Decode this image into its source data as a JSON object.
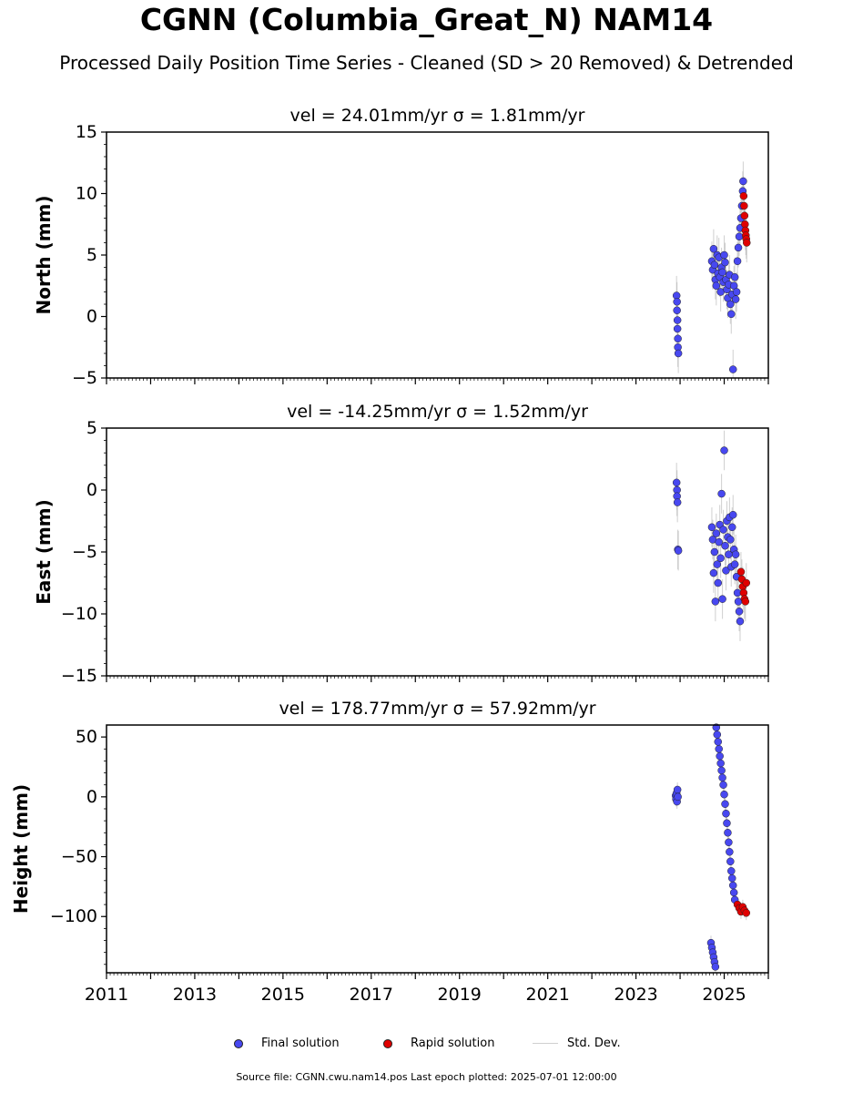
{
  "title": "CGNN (Columbia_Great_N) NAM14",
  "subtitle": "Processed Daily Position Time Series - Cleaned (SD > 20 Removed) & Detrended",
  "legend": {
    "final": "Final solution",
    "rapid": "Rapid solution",
    "stddev": "Std. Dev."
  },
  "footer": "Source file: CGNN.cwu.nam14.pos  Last epoch plotted: 2025-07-01 12:00:00",
  "colors": {
    "final": "#4848f0",
    "rapid": "#e00000",
    "stddev": "#b0b0b0"
  },
  "chart_data": [
    {
      "type": "scatter",
      "title": "vel = 24.01mm/yr   σ = 1.81mm/yr",
      "ylabel": "North (mm)",
      "xlim": [
        2011,
        2026
      ],
      "ylim": [
        -5,
        15
      ],
      "yticks": [
        "15",
        "10",
        "5",
        "0",
        "−5"
      ],
      "series": [
        {
          "name": "Final solution",
          "points": [
            [
              2023.92,
              1.7
            ],
            [
              2023.93,
              1.2
            ],
            [
              2023.93,
              0.5
            ],
            [
              2023.94,
              -0.3
            ],
            [
              2023.94,
              -1.0
            ],
            [
              2023.95,
              -1.8
            ],
            [
              2023.95,
              -2.5
            ],
            [
              2023.96,
              -3.0
            ],
            [
              2024.72,
              4.5
            ],
            [
              2024.74,
              3.8
            ],
            [
              2024.76,
              5.5
            ],
            [
              2024.78,
              4.2
            ],
            [
              2024.8,
              3.0
            ],
            [
              2024.82,
              2.5
            ],
            [
              2024.84,
              5.0
            ],
            [
              2024.86,
              3.5
            ],
            [
              2024.88,
              4.8
            ],
            [
              2024.9,
              3.2
            ],
            [
              2024.92,
              2.0
            ],
            [
              2024.94,
              4.0
            ],
            [
              2024.96,
              3.6
            ],
            [
              2024.98,
              2.8
            ],
            [
              2025.0,
              5.0
            ],
            [
              2025.02,
              4.4
            ],
            [
              2025.04,
              3.0
            ],
            [
              2025.06,
              2.2
            ],
            [
              2025.08,
              1.5
            ],
            [
              2025.1,
              2.6
            ],
            [
              2025.12,
              3.4
            ],
            [
              2025.14,
              1.0
            ],
            [
              2025.16,
              0.2
            ],
            [
              2025.18,
              1.8
            ],
            [
              2025.2,
              -4.3
            ],
            [
              2025.22,
              2.5
            ],
            [
              2025.24,
              3.2
            ],
            [
              2025.26,
              1.4
            ],
            [
              2025.28,
              2.0
            ],
            [
              2025.3,
              4.5
            ],
            [
              2025.32,
              5.6
            ],
            [
              2025.34,
              6.5
            ],
            [
              2025.36,
              7.2
            ],
            [
              2025.38,
              8.0
            ],
            [
              2025.4,
              9.0
            ],
            [
              2025.42,
              10.2
            ],
            [
              2025.43,
              11.0
            ]
          ]
        },
        {
          "name": "Rapid solution",
          "points": [
            [
              2025.44,
              9.8
            ],
            [
              2025.45,
              9.0
            ],
            [
              2025.46,
              8.2
            ],
            [
              2025.47,
              7.5
            ],
            [
              2025.48,
              7.0
            ],
            [
              2025.49,
              6.6
            ],
            [
              2025.5,
              6.3
            ],
            [
              2025.51,
              6.0
            ]
          ]
        }
      ]
    },
    {
      "type": "scatter",
      "title": "vel = -14.25mm/yr   σ = 1.52mm/yr",
      "ylabel": "East (mm)",
      "xlim": [
        2011,
        2026
      ],
      "ylim": [
        -15,
        5
      ],
      "yticks": [
        "5",
        "0",
        "−5",
        "−10",
        "−15"
      ],
      "series": [
        {
          "name": "Final solution",
          "points": [
            [
              2023.92,
              0.6
            ],
            [
              2023.93,
              0.0
            ],
            [
              2023.93,
              -0.5
            ],
            [
              2023.94,
              -1.0
            ],
            [
              2023.95,
              -4.8
            ],
            [
              2023.96,
              -4.9
            ],
            [
              2024.72,
              -3.0
            ],
            [
              2024.74,
              -4.0
            ],
            [
              2024.76,
              -6.7
            ],
            [
              2024.78,
              -5.0
            ],
            [
              2024.8,
              -9.0
            ],
            [
              2024.82,
              -3.5
            ],
            [
              2024.84,
              -6.0
            ],
            [
              2024.86,
              -7.5
            ],
            [
              2024.88,
              -4.2
            ],
            [
              2024.9,
              -2.8
            ],
            [
              2024.92,
              -5.5
            ],
            [
              2024.94,
              -0.3
            ],
            [
              2024.96,
              -8.8
            ],
            [
              2024.98,
              -3.2
            ],
            [
              2025.0,
              3.2
            ],
            [
              2025.02,
              -4.5
            ],
            [
              2025.04,
              -6.5
            ],
            [
              2025.06,
              -2.5
            ],
            [
              2025.08,
              -3.8
            ],
            [
              2025.1,
              -5.2
            ],
            [
              2025.12,
              -2.2
            ],
            [
              2025.14,
              -4.0
            ],
            [
              2025.16,
              -6.2
            ],
            [
              2025.18,
              -3.0
            ],
            [
              2025.2,
              -2.0
            ],
            [
              2025.22,
              -4.8
            ],
            [
              2025.24,
              -6.0
            ],
            [
              2025.26,
              -5.2
            ],
            [
              2025.28,
              -7.0
            ],
            [
              2025.3,
              -8.3
            ],
            [
              2025.32,
              -9.0
            ],
            [
              2025.34,
              -9.8
            ],
            [
              2025.36,
              -10.6
            ]
          ]
        },
        {
          "name": "Rapid solution",
          "points": [
            [
              2025.38,
              -6.6
            ],
            [
              2025.4,
              -7.2
            ],
            [
              2025.42,
              -7.8
            ],
            [
              2025.44,
              -8.3
            ],
            [
              2025.46,
              -8.8
            ],
            [
              2025.48,
              -9.0
            ],
            [
              2025.5,
              -7.5
            ]
          ]
        }
      ]
    },
    {
      "type": "scatter",
      "title": "vel = 178.77mm/yr   σ = 57.92mm/yr",
      "ylabel": "Height (mm)",
      "xlim": [
        2011,
        2026
      ],
      "ylim": [
        -147,
        60
      ],
      "yticks": [
        "50",
        "0",
        "−50",
        "−100"
      ],
      "yticks_values": [
        50,
        0,
        -50,
        -100
      ],
      "series": [
        {
          "name": "Final solution",
          "points": [
            [
              2023.9,
              1.0
            ],
            [
              2023.91,
              -2.0
            ],
            [
              2023.92,
              3.0
            ],
            [
              2023.93,
              -4.0
            ],
            [
              2023.94,
              6.0
            ],
            [
              2023.95,
              0.0
            ],
            [
              2024.7,
              -122
            ],
            [
              2024.72,
              -126
            ],
            [
              2024.74,
              -130
            ],
            [
              2024.76,
              -134
            ],
            [
              2024.78,
              -138
            ],
            [
              2024.8,
              -142
            ],
            [
              2024.82,
              58
            ],
            [
              2024.84,
              52
            ],
            [
              2024.86,
              46
            ],
            [
              2024.88,
              40
            ],
            [
              2024.9,
              34
            ],
            [
              2024.92,
              28
            ],
            [
              2024.94,
              22
            ],
            [
              2024.96,
              16
            ],
            [
              2024.98,
              10
            ],
            [
              2025.0,
              2
            ],
            [
              2025.02,
              -6
            ],
            [
              2025.04,
              -14
            ],
            [
              2025.06,
              -22
            ],
            [
              2025.08,
              -30
            ],
            [
              2025.1,
              -38
            ],
            [
              2025.12,
              -46
            ],
            [
              2025.14,
              -54
            ],
            [
              2025.16,
              -62
            ],
            [
              2025.18,
              -68
            ],
            [
              2025.2,
              -74
            ],
            [
              2025.22,
              -80
            ],
            [
              2025.24,
              -86
            ]
          ]
        },
        {
          "name": "Rapid solution",
          "points": [
            [
              2025.3,
              -90
            ],
            [
              2025.34,
              -93
            ],
            [
              2025.38,
              -96
            ],
            [
              2025.42,
              -92
            ],
            [
              2025.46,
              -95
            ],
            [
              2025.5,
              -97
            ]
          ]
        }
      ]
    }
  ],
  "xticks": [
    "2011",
    "2013",
    "2015",
    "2017",
    "2019",
    "2021",
    "2023",
    "2025"
  ],
  "xtick_values": [
    2011,
    2013,
    2015,
    2017,
    2019,
    2021,
    2023,
    2025
  ]
}
